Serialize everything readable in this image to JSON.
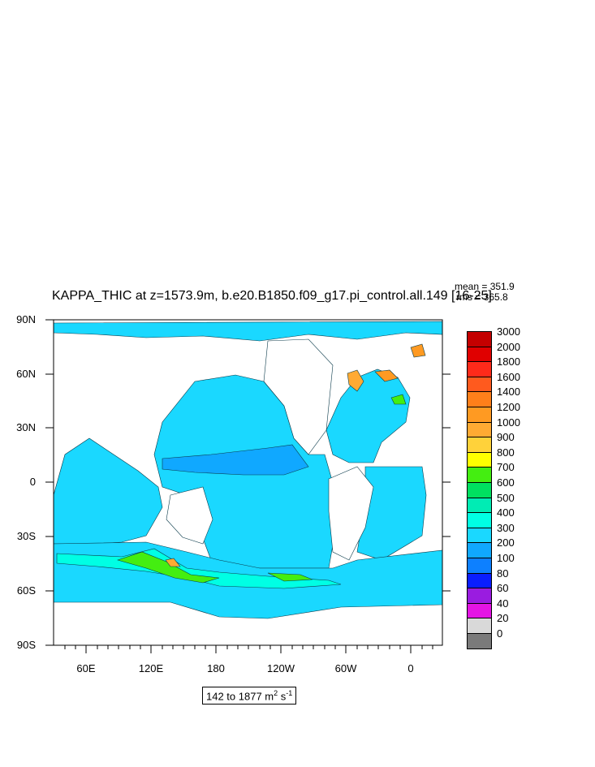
{
  "title": "KAPPA_THIC at z=1573.9m, b.e20.B1850.f09_g17.pi_control.all.149 [16-25]",
  "stats": {
    "mean": "mean = 351.9",
    "rms": "rms = 365.8"
  },
  "units": {
    "range": "142 to 1877 m",
    "exp1": "2",
    "mid": " s",
    "exp2": "-1"
  },
  "axes": {
    "y_labels": [
      "90N",
      "60N",
      "30N",
      "0",
      "30S",
      "60S",
      "90S"
    ],
    "x_labels": [
      "60E",
      "120E",
      "180",
      "120W",
      "60W",
      "0"
    ]
  },
  "colorbar": {
    "labels": [
      "3000",
      "2000",
      "1800",
      "1600",
      "1400",
      "1200",
      "1000",
      "900",
      "800",
      "700",
      "600",
      "500",
      "400",
      "300",
      "200",
      "100",
      "80",
      "60",
      "40",
      "20",
      "0"
    ],
    "colors": [
      "#c40000",
      "#e00000",
      "#ff2a1a",
      "#ff5a1e",
      "#ff7f1a",
      "#ff9a22",
      "#ffaa33",
      "#ffd23a",
      "#ffff00",
      "#44ee11",
      "#00e060",
      "#00ecb4",
      "#00ffe4",
      "#1ad8ff",
      "#10a8ff",
      "#0d80ff",
      "#0a1eff",
      "#9a1ce0",
      "#e414e4",
      "#d9d9d9",
      "#7a7a7a"
    ]
  },
  "map_colors": {
    "base": "#1ad8ff",
    "mid": "#10a8ff",
    "low": "#00ffe4",
    "high": "#44ee11",
    "hot": "#ffaa33",
    "land": "#ffffff"
  }
}
